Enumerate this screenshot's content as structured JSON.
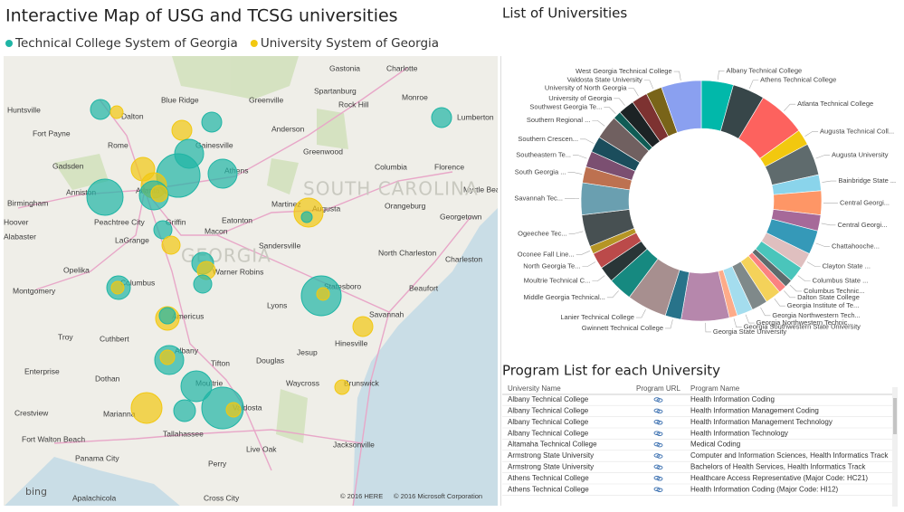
{
  "header": {
    "title": "Interactive Map of USG and TCSG universities"
  },
  "map": {
    "legend": [
      {
        "name": "Technical College System of Georgia",
        "color": "#1fb5a5"
      },
      {
        "name": "University System of Georgia",
        "color": "#f2c811"
      }
    ],
    "labels": [
      "Huntsville",
      "Fort Payne",
      "Dalton",
      "Blue Ridge",
      "Greenville",
      "Spartanburg",
      "Gastonia",
      "Charlotte",
      "Rock Hill",
      "Monroe",
      "Lumberton",
      "Anderson",
      "Greenwood",
      "Gainesville",
      "Rome",
      "Gadsden",
      "Athens",
      "Columbia",
      "Florence",
      "Birmingham",
      "Anniston",
      "Atlanta",
      "Myrtle Beach",
      "Martinez",
      "Augusta",
      "Orangeburg",
      "Peachtree City",
      "Griffin",
      "Eatonton",
      "Georgetown",
      "Hoover",
      "Alabaster",
      "LaGrange",
      "Macon",
      "Sandersville",
      "North Charleston",
      "Charleston",
      "Opelika",
      "Warner Robins",
      "Columbus",
      "Montgomery",
      "Statesboro",
      "Beaufort",
      "Lyons",
      "Americus",
      "Savannah",
      "Troy",
      "Cuthbert",
      "Hinesville",
      "Jesup",
      "Albany",
      "Tifton",
      "Douglas",
      "Enterprise",
      "Dothan",
      "Waycross",
      "Moultrie",
      "Brunswick",
      "Crestview",
      "Marianna",
      "Valdosta",
      "Tallahassee",
      "Fort Walton Beach",
      "Live Oak",
      "Jacksonville",
      "Panama City",
      "Perry",
      "Apalachicola",
      "Cross City"
    ],
    "regions": [
      "SOUTH CAROLINA",
      "GEORGIA"
    ],
    "attribution": [
      "© 2016 HERE",
      "© 2016 Microsoft Corporation"
    ],
    "logo": "bing"
  },
  "chart_data": {
    "type": "pie",
    "title": "List of Universities",
    "categories": [
      "Albany Technical College",
      "Athens Technical College",
      "Atlanta Technical College",
      "Augusta Technical Coll...",
      "Augusta University",
      "Bainbridge State ...",
      "Central Georgi...",
      "Central Georgi...",
      "Chattahooche...",
      "Clayton State ...",
      "Columbus State ...",
      "Columbus Technic...",
      "Dalton State College",
      "Georgia Institute of Te...",
      "Georgia Northwestern Tech...",
      "Georgia Northwestern Technic...",
      "Georgia Southwestern State University",
      "Georgia State University",
      "Gwinnett Technical College",
      "Lanier Technical College",
      "Middle Georgia Technical...",
      "Moultrie Technical C...",
      "North Georgia Te...",
      "Oconee Fall Line...",
      "Ogeechee Tec...",
      "Savannah Tec...",
      "South Georgia ...",
      "Southeastern Te...",
      "Southern Crescen...",
      "Southern Regional ...",
      "Southwest Georgia Te...",
      "University of Georgia",
      "University of North Georgia",
      "Valdosta State University",
      "West Georgia Technical College"
    ],
    "values": [
      4,
      4,
      6,
      2,
      4,
      2,
      3,
      2,
      3,
      2,
      2,
      1,
      1,
      2,
      2,
      2,
      1,
      6,
      2,
      5,
      3,
      2,
      2,
      1,
      4,
      4,
      2,
      2,
      2,
      3,
      1,
      2,
      2,
      2,
      5
    ],
    "colors": [
      "#01B8AA",
      "#374649",
      "#FD625E",
      "#F2C80F",
      "#5F6B6D",
      "#8AD4EB",
      "#FE9666",
      "#A66999",
      "#3599B8",
      "#DFBFBF",
      "#4AC5BB",
      "#5F6B6D",
      "#FB8281",
      "#F4D25A",
      "#7F898A",
      "#A4DDEE",
      "#FDAB89",
      "#B687AC",
      "#28738A",
      "#A78F8F",
      "#168980",
      "#293537",
      "#BB4A4A",
      "#B59525",
      "#475052",
      "#6A9FB0",
      "#BD7150",
      "#7B4F71",
      "#1B4D5C",
      "#706060",
      "#0F5C55",
      "#1C2325",
      "#7D3231",
      "#796419",
      "#8AA0F0"
    ]
  },
  "table": {
    "title": "Program List for each University",
    "columns": [
      "University Name",
      "Program URL",
      "Program Name"
    ],
    "rows": [
      {
        "university": "Albany Technical College",
        "program": "Health Information Coding"
      },
      {
        "university": "Albany Technical College",
        "program": "Health Information Management Coding"
      },
      {
        "university": "Albany Technical College",
        "program": "Health Information Management Technology"
      },
      {
        "university": "Albany Technical College",
        "program": "Health Information Technology"
      },
      {
        "university": "Altamaha Technical College",
        "program": "Medical Coding"
      },
      {
        "university": "Armstrong State University",
        "program": "Computer and Information Sciences, Health Informatics Track"
      },
      {
        "university": "Armstrong State University",
        "program": "Bachelors of Health Services, Health Informatics Track"
      },
      {
        "university": "Athens Technical College",
        "program": "Healthcare Access Representative (Major Code: HC21)"
      },
      {
        "university": "Athens Technical College",
        "program": "Health Information Coding (Major Code: HI12)"
      }
    ]
  }
}
